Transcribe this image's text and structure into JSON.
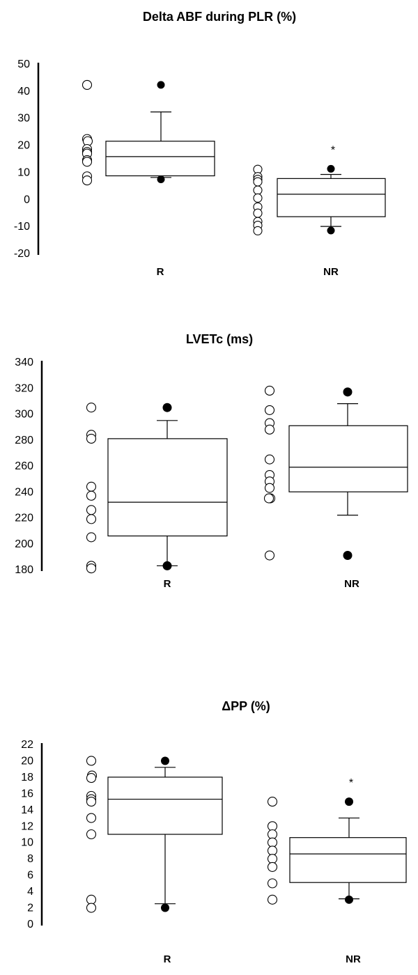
{
  "chart_data": [
    {
      "type": "box",
      "title": "Delta ABF during PLR (%)",
      "xlabel": "",
      "ylabel": "",
      "ylim": [
        -20,
        50
      ],
      "yticks": [
        50,
        40,
        30,
        20,
        10,
        0,
        -10,
        -20
      ],
      "ytick_labels": [
        "50",
        "40",
        "30",
        "20",
        "10",
        "0",
        "-10",
        "-20"
      ],
      "categories": [
        "R",
        "NR"
      ],
      "groups": [
        {
          "label": "R",
          "points": [
            42.3,
            22.3,
            21.5,
            18.6,
            17.5,
            16.9,
            14.5,
            13.9,
            8.5,
            7.0
          ],
          "box": {
            "q1": 8.7,
            "median": 15.8,
            "q3": 21.5,
            "whisker_low": 8.1,
            "whisker_high": 32.3
          },
          "outliers": [
            42.3,
            7.4
          ],
          "annotation": ""
        },
        {
          "label": "NR",
          "points": [
            11.1,
            8.4,
            7.4,
            6.5,
            3.4,
            0.5,
            -2.8,
            -5.1,
            -8.2,
            -9.6,
            -11.6
          ],
          "box": {
            "q1": -6.4,
            "median": 1.9,
            "q3": 7.7,
            "whisker_low": -10.0,
            "whisker_high": 9.2
          },
          "outliers": [
            11.3,
            -11.5
          ],
          "annotation": "*"
        }
      ]
    },
    {
      "type": "box",
      "title": "LVETc (ms)",
      "xlabel": "",
      "ylabel": "",
      "ylim": [
        180,
        340
      ],
      "yticks": [
        340,
        320,
        300,
        280,
        260,
        240,
        220,
        200,
        180
      ],
      "ytick_labels": [
        "340",
        "320",
        "300",
        "280",
        "260",
        "240",
        "220",
        "200",
        "180"
      ],
      "categories": [
        "R",
        "NR"
      ],
      "groups": [
        {
          "label": "R",
          "points": [
            305,
            284,
            281,
            244,
            237,
            226,
            219,
            205,
            183,
            181
          ],
          "box": {
            "q1": 206,
            "median": 232,
            "q3": 281,
            "whisker_low": 183,
            "whisker_high": 295
          },
          "outliers": [
            305,
            183
          ],
          "annotation": ""
        },
        {
          "label": "NR",
          "points": [
            318,
            303,
            293,
            288,
            265,
            253,
            248,
            243,
            235,
            235,
            191
          ],
          "box": {
            "q1": 240,
            "median": 259,
            "q3": 291,
            "whisker_low": 222,
            "whisker_high": 308
          },
          "outliers": [
            317,
            191
          ],
          "annotation": ""
        }
      ]
    },
    {
      "type": "box",
      "title": "ΔPP (%)",
      "xlabel": "",
      "ylabel": "",
      "ylim": [
        0,
        22
      ],
      "yticks": [
        22,
        20,
        18,
        16,
        14,
        12,
        10,
        8,
        6,
        4,
        2,
        0
      ],
      "ytick_labels": [
        "22",
        "20",
        "18",
        "16",
        "14",
        "12",
        "10",
        "8",
        "6",
        "4",
        "2",
        "0"
      ],
      "categories": [
        "R",
        "NR"
      ],
      "groups": [
        {
          "label": "R",
          "points": [
            20,
            18.2,
            17.9,
            15.7,
            15.3,
            15.0,
            13,
            11,
            3,
            2
          ],
          "box": {
            "q1": 11,
            "median": 15.3,
            "q3": 18,
            "whisker_low": 2.5,
            "whisker_high": 19.2
          },
          "outliers": [
            20,
            2
          ],
          "annotation": ""
        },
        {
          "label": "NR",
          "points": [
            15,
            12,
            11,
            10,
            9,
            8,
            7,
            5,
            3
          ],
          "box": {
            "q1": 5.1,
            "median": 8.6,
            "q3": 10.6,
            "whisker_low": 3.1,
            "whisker_high": 13
          },
          "outliers": [
            15,
            3
          ],
          "annotation": "*"
        }
      ]
    }
  ]
}
